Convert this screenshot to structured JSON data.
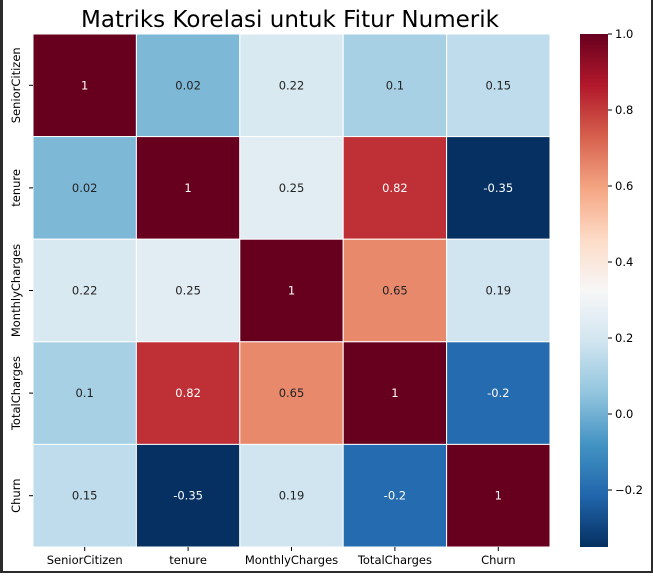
{
  "chart_data": {
    "type": "heatmap",
    "title": "Matriks Korelasi untuk Fitur Numerik",
    "xlabel": "",
    "ylabel": "",
    "x_categories": [
      "SeniorCitizen",
      "tenure",
      "MonthlyCharges",
      "TotalCharges",
      "Churn"
    ],
    "y_categories": [
      "SeniorCitizen",
      "tenure",
      "MonthlyCharges",
      "TotalCharges",
      "Churn"
    ],
    "values": [
      [
        1,
        0.02,
        0.22,
        0.1,
        0.15
      ],
      [
        0.02,
        1,
        0.25,
        0.82,
        -0.35
      ],
      [
        0.22,
        0.25,
        1,
        0.65,
        0.19
      ],
      [
        0.1,
        0.82,
        0.65,
        1,
        -0.2
      ],
      [
        0.15,
        -0.35,
        0.19,
        -0.2,
        1
      ]
    ],
    "cell_labels": [
      [
        "1",
        "0.02",
        "0.22",
        "0.1",
        "0.15"
      ],
      [
        "0.02",
        "1",
        "0.25",
        "0.82",
        "-0.35"
      ],
      [
        "0.22",
        "0.25",
        "1",
        "0.65",
        "0.19"
      ],
      [
        "0.1",
        "0.82",
        "0.65",
        "1",
        "-0.2"
      ],
      [
        "0.15",
        "-0.35",
        "0.19",
        "-0.2",
        "1"
      ]
    ],
    "colormap": "RdBu_r",
    "vmin": -0.35,
    "vmax": 1.0,
    "colorbar": {
      "ticks": [
        -0.2,
        0.0,
        0.2,
        0.4,
        0.6,
        0.8,
        1.0
      ],
      "tick_labels": [
        "−0.2",
        "0.0",
        "0.2",
        "0.4",
        "0.6",
        "0.8",
        "1.0"
      ]
    },
    "grid_lines": true,
    "grid_color": "#ffffff"
  }
}
